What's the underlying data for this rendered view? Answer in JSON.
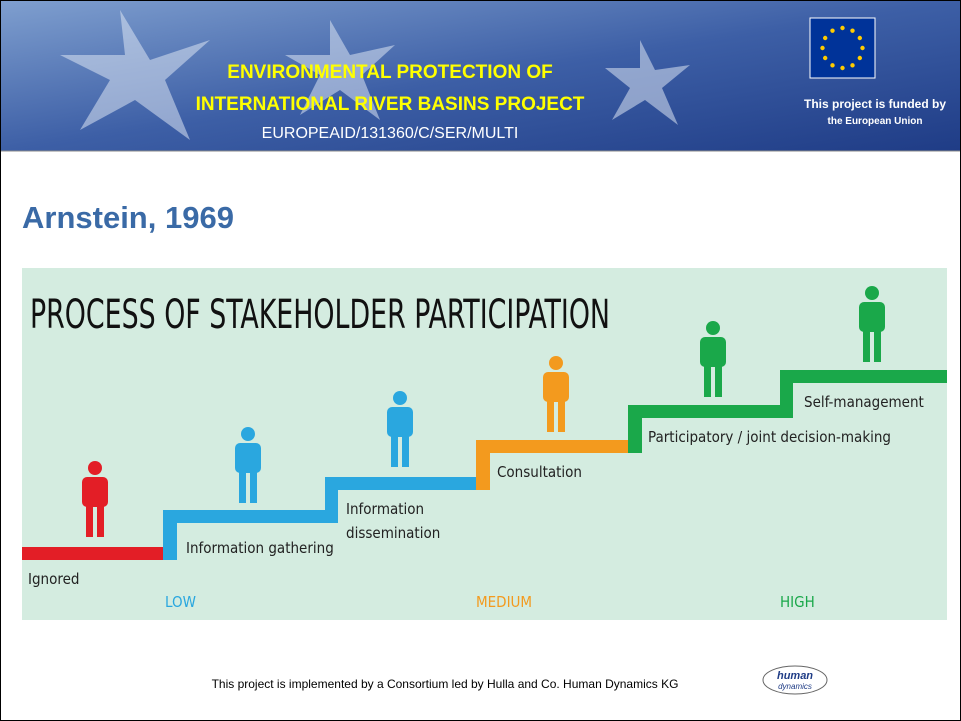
{
  "header": {
    "title_line1": "ENVIRONMENTAL PROTECTION OF",
    "title_line2": "INTERNATIONAL RIVER BASINS PROJECT",
    "code": "EUROPEAID/131360/C/SER/MULTI",
    "funded_line1": "This project is funded by",
    "funded_line2": "the European Union"
  },
  "heading": "Arnstein, 1969",
  "diagram": {
    "title": "PROCESS OF STAKEHOLDER PARTICIPATION",
    "steps": [
      {
        "lines": [
          "Ignored"
        ]
      },
      {
        "lines": [
          "Information gathering"
        ]
      },
      {
        "lines": [
          "Information",
          "dissemination"
        ]
      },
      {
        "lines": [
          "Consultation"
        ]
      },
      {
        "lines": [
          "Participatory / joint decision-making"
        ]
      },
      {
        "lines": [
          "Self-management"
        ]
      }
    ],
    "levels": [
      "LOW",
      "MEDIUM",
      "HIGH"
    ]
  },
  "footer": {
    "text": "This project is implemented by a Consortium led by Hulla and Co. Human Dynamics KG",
    "logo_line1": "human",
    "logo_line2": "dynamics"
  }
}
